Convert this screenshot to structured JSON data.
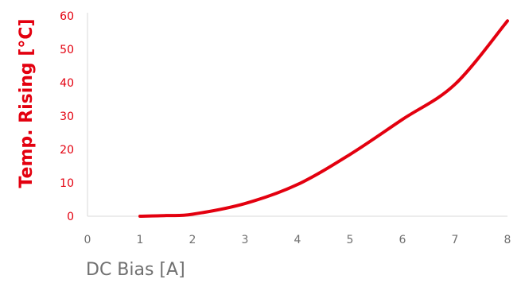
{
  "chart_data": {
    "type": "line",
    "xlabel": "DC Bias [A]",
    "ylabel": "Temp. Rising [°C]",
    "xlim": [
      0,
      8
    ],
    "ylim": [
      0,
      60
    ],
    "x_ticks": [
      "0",
      "1",
      "2",
      "3",
      "4",
      "5",
      "6",
      "7",
      "8"
    ],
    "y_ticks": [
      "0",
      "10",
      "20",
      "30",
      "40",
      "50",
      "60"
    ],
    "grid": false,
    "series": [
      {
        "x": [
          1,
          1.5,
          2,
          3,
          4,
          5,
          6,
          7,
          8
        ],
        "y": [
          0,
          0.2,
          0.6,
          3.8,
          9.5,
          18.5,
          29,
          39.5,
          58.5
        ]
      }
    ],
    "colors": {
      "series": "#e3000f",
      "y_axis_text": "#e3000f",
      "x_axis_text": "#707070",
      "axis_line": "#d9d9d9"
    }
  }
}
